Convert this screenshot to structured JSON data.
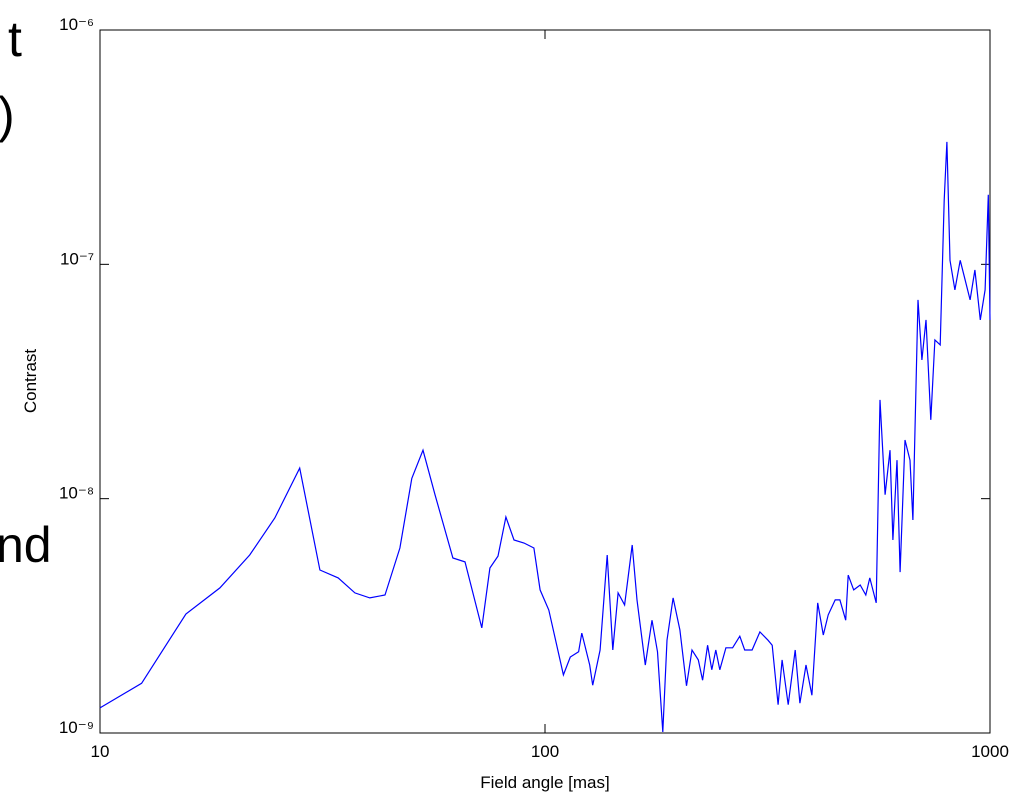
{
  "chart_data": {
    "type": "line",
    "annotations": [
      "t",
      ")",
      "nd"
    ],
    "xlabel": "Field angle [mas]",
    "ylabel": "Contrast",
    "xscale": "log",
    "yscale": "log",
    "xlim": [
      10,
      1000
    ],
    "ylim": [
      1e-09,
      1e-06
    ],
    "xticks": [
      10,
      100,
      1000
    ],
    "yticks": [
      {
        "value": 1e-09,
        "label": "10⁻⁹"
      },
      {
        "value": 1e-08,
        "label": "10⁻⁸"
      },
      {
        "value": 1e-07,
        "label": "10⁻⁷"
      },
      {
        "value": 1e-06,
        "label": "10⁻⁶"
      }
    ],
    "grid": false,
    "series": [
      {
        "color": "#0000ff",
        "x": [
          10,
          12.4,
          15.6,
          18.6,
          21.7,
          24.7,
          28.1,
          31.2,
          34.3,
          37.4,
          40.4,
          43.7,
          47.2,
          50.2,
          53.2,
          56.6,
          62.1,
          66.1,
          72.1,
          75.2,
          78.4,
          81.7,
          85.2,
          89.7,
          94.4,
          97.5,
          102,
          110,
          114,
          119,
          121,
          126,
          128,
          133,
          138,
          142,
          146,
          151,
          157,
          161,
          168,
          174,
          179,
          184,
          188,
          194,
          201,
          208,
          214,
          221,
          226,
          232,
          237,
          242,
          247,
          255,
          264,
          274,
          281,
          292,
          304,
          317,
          324,
          334,
          341,
          352,
          365,
          374,
          386,
          398,
          410,
          422,
          433,
          449,
          460,
          474,
          480,
          494,
          511,
          526,
          537,
          555,
          566,
          581,
          596,
          605,
          618,
          628,
          644,
          661,
          671,
          689,
          703,
          718,
          736,
          752,
          773,
          789,
          800,
          813,
          834,
          857,
          879,
          902,
          925,
          951,
          975,
          991,
          1000
        ],
        "values": [
          1.28e-09,
          1.63e-09,
          3.22e-09,
          4.16e-09,
          5.75e-09,
          8.27e-09,
          1.35e-08,
          4.96e-09,
          4.59e-09,
          3.96e-09,
          3.77e-09,
          3.88e-09,
          6.16e-09,
          1.22e-08,
          1.61e-08,
          1.04e-08,
          5.58e-09,
          5.37e-09,
          2.81e-09,
          5.06e-09,
          5.69e-09,
          8.35e-09,
          6.66e-09,
          6.47e-09,
          6.16e-09,
          4.08e-09,
          3.35e-09,
          1.77e-09,
          2.11e-09,
          2.22e-09,
          2.67e-09,
          1.95e-09,
          1.6e-09,
          2.26e-09,
          5.75e-09,
          2.26e-09,
          3.96e-09,
          3.52e-09,
          6.34e-09,
          3.7e-09,
          1.95e-09,
          3.03e-09,
          2.22e-09,
          1.01e-09,
          2.49e-09,
          3.77e-09,
          2.75e-09,
          1.59e-09,
          2.26e-09,
          2.05e-09,
          1.68e-09,
          2.37e-09,
          1.86e-09,
          2.26e-09,
          1.86e-09,
          2.31e-09,
          2.31e-09,
          2.59e-09,
          2.26e-09,
          2.26e-09,
          2.7e-09,
          2.49e-09,
          2.37e-09,
          1.32e-09,
          2.05e-09,
          1.32e-09,
          2.26e-09,
          1.34e-09,
          1.95e-09,
          1.45e-09,
          3.59e-09,
          2.62e-09,
          3.19e-09,
          3.7e-09,
          3.7e-09,
          3.03e-09,
          4.72e-09,
          4.08e-09,
          4.28e-09,
          3.88e-09,
          4.59e-09,
          3.59e-09,
          2.64e-08,
          1.04e-08,
          1.61e-08,
          6.66e-09,
          1.46e-08,
          4.86e-09,
          1.78e-08,
          1.46e-08,
          8.11e-09,
          7.05e-08,
          3.91e-08,
          5.79e-08,
          2.17e-08,
          4.76e-08,
          4.53e-08,
          1.88e-07,
          3.33e-07,
          1.04e-07,
          7.78e-08,
          1.04e-07,
          8.59e-08,
          7.05e-08,
          9.46e-08,
          5.79e-08,
          7.78e-08,
          1.98e-07,
          5.79e-08
        ]
      }
    ]
  }
}
